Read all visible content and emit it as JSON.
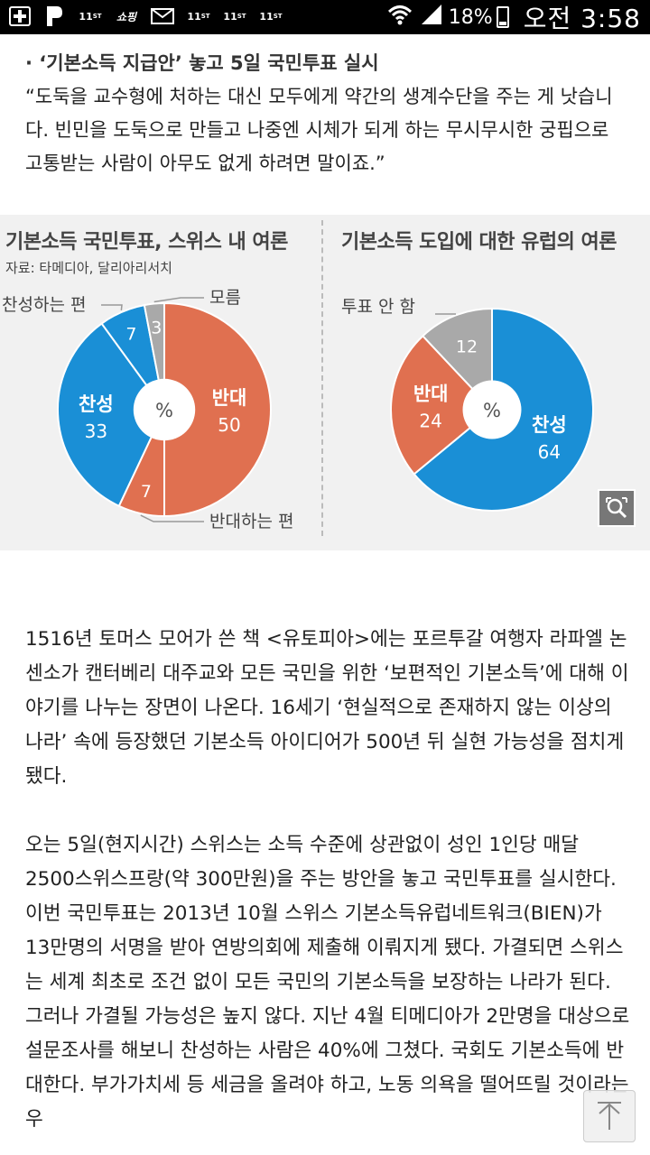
{
  "status_bar": {
    "notif_icons": [
      "plus-icon",
      "p-icon",
      "11st-icon",
      "shopping-icon",
      "mail-icon",
      "11st-icon",
      "11st-icon",
      "11st-icon"
    ],
    "battery": "18%",
    "time": "오전 3:58"
  },
  "article": {
    "headline": "· ‘기본소득 지급안’ 놓고 5일 국민투표 실시",
    "quote": "“도둑을 교수형에 처하는 대신 모두에게 약간의 생계수단을 주는 게 낫습니다. 빈민을 도둑으로 만들고 나중엔 시체가 되게 하는 무시무시한 궁핍으로 고통받는 사람이 아무도 없게 하려면 말이죠.”",
    "paragraphs": [
      "1516년 토머스 모어가 쓴 책 <유토피아>에는 포르투갈 여행자 라파엘 논센소가 캔터베리 대주교와 모든 국민을 위한 ‘보편적인 기본소득’에 대해 이야기를 나누는 장면이 나온다. 16세기 ‘현실적으로 존재하지 않는 이상의 나라’ 속에 등장했던 기본소득 아이디어가 500년 뒤 실현 가능성을 점치게 됐다.",
      "오는 5일(현지시간) 스위스는 소득 수준에 상관없이 성인 1인당 매달 2500스위스프랑(약 300만원)을 주는 방안을 놓고 국민투표를 실시한다. 이번 국민투표는 2013년 10월 스위스 기본소득유럽네트워크(BIEN)가 13만명의 서명을 받아 연방의회에 제출해 이뤄지게 됐다. 가결되면 스위스는 세계 최초로 조건 없이 모든 국민의 기본소득을 보장하는 나라가 된다. 그러나 가결될 가능성은 높지 않다. 지난 4월 티메디아가 2만명을 대상으로 설문조사를 해보니 찬성하는 사람은 40%에 그쳤다. 국회도 기본소득에 반대한다. 부가가치세 등 세금을 올려야 하고, 노동 의욕을 떨어뜨릴 것이라는 우"
    ]
  },
  "chart_data": [
    {
      "type": "pie",
      "title": "기본소득 국민투표, 스위스 내 여론",
      "source": "자료: 타메디아, 달리아리서치",
      "center_label": "%",
      "slices": [
        {
          "label": "반대",
          "value": 50,
          "color": "#e07050"
        },
        {
          "label": "반대하는 편",
          "value": 7,
          "color": "#e07050"
        },
        {
          "label": "찬성",
          "value": 33,
          "color": "#1a8fd6"
        },
        {
          "label": "찬성하는 편",
          "value": 7,
          "color": "#1a8fd6"
        },
        {
          "label": "모름",
          "value": 3,
          "color": "#a9a9a9"
        }
      ]
    },
    {
      "type": "pie",
      "title": "기본소득 도입에 대한 유럽의 여론",
      "center_label": "%",
      "slices": [
        {
          "label": "찬성",
          "value": 64,
          "color": "#1a8fd6"
        },
        {
          "label": "반대",
          "value": 24,
          "color": "#e07050"
        },
        {
          "label": "투표 안 함",
          "value": 12,
          "color": "#a9a9a9"
        }
      ]
    }
  ]
}
